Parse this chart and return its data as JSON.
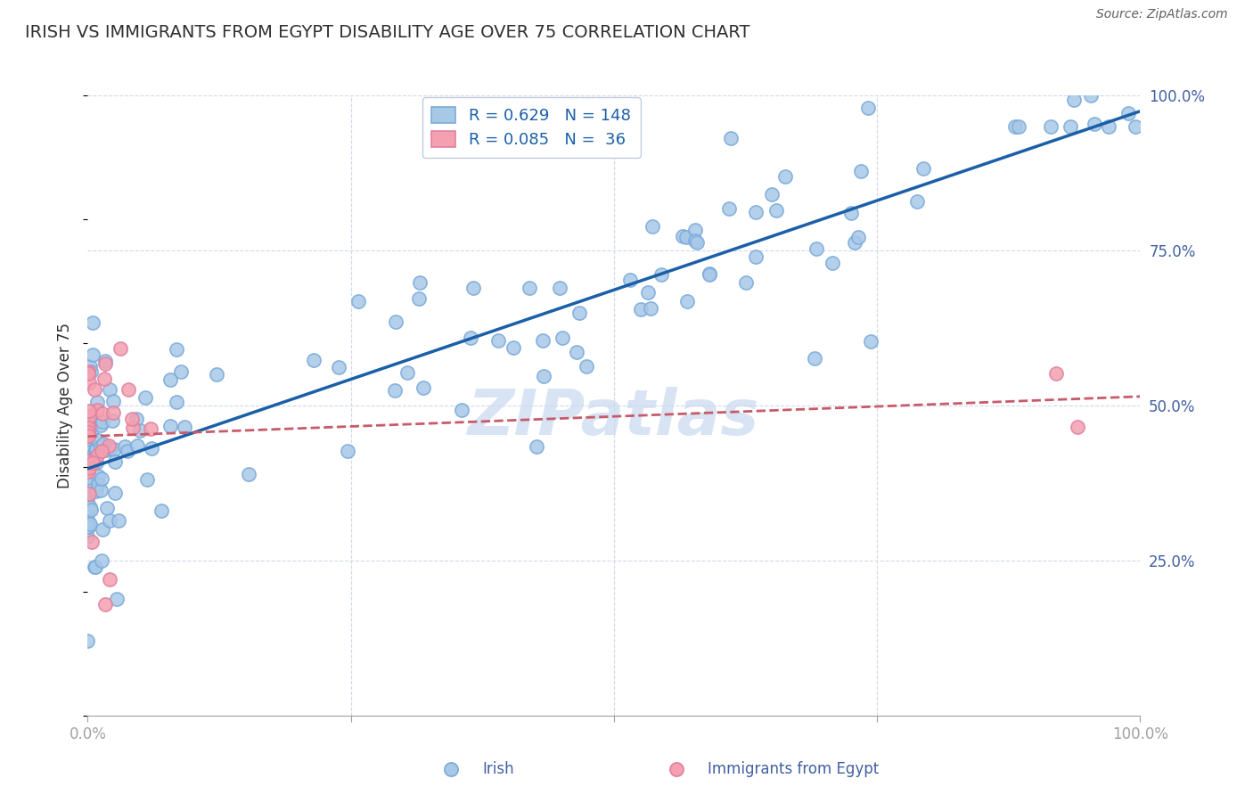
{
  "title": "IRISH VS IMMIGRANTS FROM EGYPT DISABILITY AGE OVER 75 CORRELATION CHART",
  "source": "Source: ZipAtlas.com",
  "ylabel": "Disability Age Over 75",
  "xlim": [
    0,
    1.0
  ],
  "ylim": [
    0,
    1.0
  ],
  "ytick_labels_right": [
    "100.0%",
    "75.0%",
    "50.0%",
    "25.0%"
  ],
  "ytick_positions_right": [
    1.0,
    0.75,
    0.5,
    0.25
  ],
  "legend_irish_R": 0.629,
  "legend_irish_N": 148,
  "legend_egypt_R": 0.085,
  "legend_egypt_N": 36,
  "irish_color": "#a8c8e8",
  "egypt_color": "#f4a0b0",
  "irish_line_color": "#1a5fa8",
  "egypt_line_color": "#c85a6a",
  "background_color": "#ffffff",
  "grid_color": "#d0d8e8",
  "watermark_color": "#c8d8f0",
  "title_color": "#303030",
  "axis_label_color": "#4060a0",
  "legend_R_color": "#1a5fa8",
  "legend_N_color": "#d03030"
}
